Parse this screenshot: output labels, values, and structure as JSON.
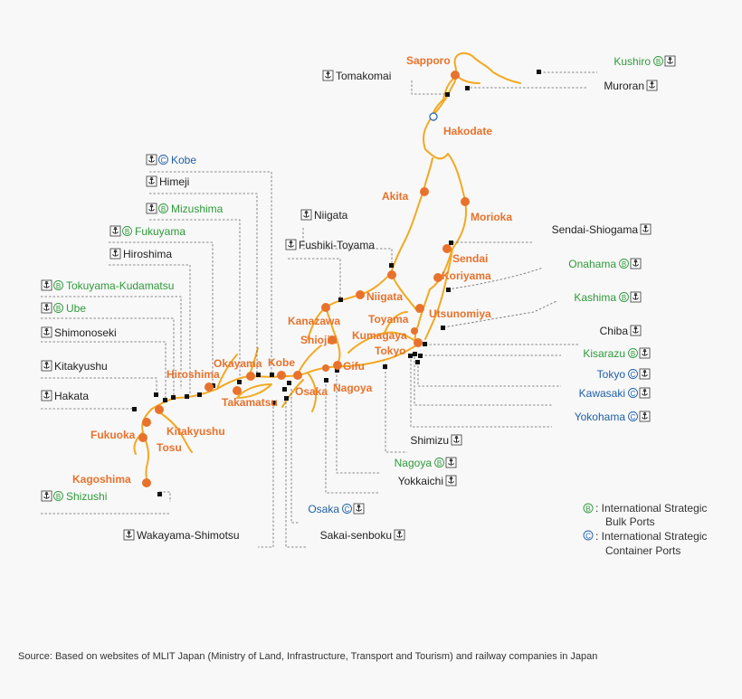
{
  "cities": [
    {
      "id": "sapporo",
      "label": "Sapporo"
    },
    {
      "id": "hakodate",
      "label": "Hakodate"
    },
    {
      "id": "akita",
      "label": "Akita"
    },
    {
      "id": "morioka",
      "label": "Morioka"
    },
    {
      "id": "sendai",
      "label": "Sendai"
    },
    {
      "id": "koriyama",
      "label": "Koriyama"
    },
    {
      "id": "niigata",
      "label": "Niigata"
    },
    {
      "id": "utsunomiya",
      "label": "Utsunomiya"
    },
    {
      "id": "toyama",
      "label": "Toyama"
    },
    {
      "id": "kumagaya",
      "label": "Kumagaya"
    },
    {
      "id": "tokyo",
      "label": "Tokyo"
    },
    {
      "id": "kanazawa",
      "label": "Kanazawa"
    },
    {
      "id": "shiojiri",
      "label": "Shiojiri"
    },
    {
      "id": "gifu",
      "label": "Gifu"
    },
    {
      "id": "nagoya",
      "label": "Nagoya"
    },
    {
      "id": "osaka",
      "label": "Osaka"
    },
    {
      "id": "kobe",
      "label": "Kobe"
    },
    {
      "id": "okayama",
      "label": "Okayama"
    },
    {
      "id": "hiroshima",
      "label": "Hiroshima"
    },
    {
      "id": "takamatsu",
      "label": "Takamatsu"
    },
    {
      "id": "kitakyushu",
      "label": "Kitakyushu"
    },
    {
      "id": "fukuoka",
      "label": "Fukuoka"
    },
    {
      "id": "tosu",
      "label": "Tosu"
    },
    {
      "id": "kagoshima",
      "label": "Kagoshima"
    }
  ],
  "ports": [
    {
      "id": "kushiro",
      "label": "Kushiro",
      "type": "B",
      "color": "#2e9a3a"
    },
    {
      "id": "tomakomai",
      "label": "Tomakomai",
      "type": "",
      "color": "#222222"
    },
    {
      "id": "muroran",
      "label": "Muroran",
      "type": "",
      "color": "#222222"
    },
    {
      "id": "kobe",
      "label": "Kobe",
      "type": "C",
      "color": "#1f5fa8"
    },
    {
      "id": "himeji",
      "label": "Himeji",
      "type": "",
      "color": "#222222"
    },
    {
      "id": "mizushima",
      "label": "Mizushima",
      "type": "B",
      "color": "#2e9a3a"
    },
    {
      "id": "niigata",
      "label": "Niigata",
      "type": "",
      "color": "#222222"
    },
    {
      "id": "fukuyama",
      "label": "Fukuyama",
      "type": "B",
      "color": "#2e9a3a"
    },
    {
      "id": "fushiki",
      "label": "Fushiki-Toyama",
      "type": "",
      "color": "#222222"
    },
    {
      "id": "sendai",
      "label": "Sendai-Shiogama",
      "type": "",
      "color": "#222222"
    },
    {
      "id": "hiroshima",
      "label": "Hiroshima",
      "type": "",
      "color": "#222222"
    },
    {
      "id": "onahama",
      "label": "Onahama",
      "type": "B",
      "color": "#2e9a3a"
    },
    {
      "id": "tokuyama",
      "label": "Tokuyama-Kudamatsu",
      "type": "B",
      "color": "#2e9a3a"
    },
    {
      "id": "kashima",
      "label": "Kashima",
      "type": "B",
      "color": "#2e9a3a"
    },
    {
      "id": "ube",
      "label": "Ube",
      "type": "B",
      "color": "#2e9a3a"
    },
    {
      "id": "chiba",
      "label": "Chiba",
      "type": "",
      "color": "#222222"
    },
    {
      "id": "shimonoseki",
      "label": "Shimonoseki",
      "type": "",
      "color": "#222222"
    },
    {
      "id": "kisarazu",
      "label": "Kisarazu",
      "type": "B",
      "color": "#2e9a3a"
    },
    {
      "id": "kitakyushu",
      "label": "Kitakyushu",
      "type": "",
      "color": "#222222"
    },
    {
      "id": "tokyo",
      "label": "Tokyo",
      "type": "C",
      "color": "#1f5fa8"
    },
    {
      "id": "hakata",
      "label": "Hakata",
      "type": "",
      "color": "#222222"
    },
    {
      "id": "kawasaki",
      "label": "Kawasaki",
      "type": "C",
      "color": "#1f5fa8"
    },
    {
      "id": "yokohama",
      "label": "Yokohama",
      "type": "C",
      "color": "#1f5fa8"
    },
    {
      "id": "shimizu",
      "label": "Shimizu",
      "type": "",
      "color": "#222222"
    },
    {
      "id": "nagoya",
      "label": "Nagoya",
      "type": "B",
      "color": "#2e9a3a"
    },
    {
      "id": "yokkaichi",
      "label": "Yokkaichi",
      "type": "",
      "color": "#222222"
    },
    {
      "id": "shizushi",
      "label": "Shizushi",
      "type": "B",
      "color": "#2e9a3a"
    },
    {
      "id": "osaka",
      "label": "Osaka",
      "type": "C",
      "color": "#1f5fa8"
    },
    {
      "id": "wakayama",
      "label": "Wakayama-Shimotsu",
      "type": "",
      "color": "#222222"
    },
    {
      "id": "sakai",
      "label": "Sakai-senboku",
      "type": "",
      "color": "#222222"
    }
  ],
  "legend": {
    "bulk_symbol": "B",
    "bulk_line1": ": International Strategic",
    "bulk_line2": "Bulk Ports",
    "container_symbol": "C",
    "container_line1": ": International Strategic",
    "container_line2": "Container Ports"
  },
  "source": "Source:  Based on websites of MLIT Japan (Ministry of Land, Infrastructure, Transport and Tourism) and railway companies in Japan",
  "colors": {
    "city": "#e8722c",
    "rail": "#f2a922",
    "bulk": "#2e9a3a",
    "container": "#1f5fa8"
  }
}
